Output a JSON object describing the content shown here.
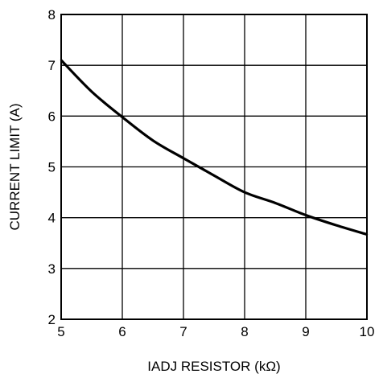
{
  "chart_data": {
    "type": "line",
    "title": "",
    "xlabel": "IADJ RESISTOR (kΩ)",
    "ylabel": "CURRENT LIMIT (A)",
    "xlim": [
      5,
      10
    ],
    "ylim": [
      2,
      8
    ],
    "xticks": [
      5,
      6,
      7,
      8,
      9,
      10
    ],
    "yticks": [
      2,
      3,
      4,
      5,
      6,
      7,
      8
    ],
    "grid": true,
    "series": [
      {
        "x": [
          5.0,
          5.5,
          6.0,
          6.5,
          7.0,
          7.5,
          8.0,
          8.5,
          9.0,
          9.5,
          10.0
        ],
        "y": [
          7.1,
          6.48,
          5.98,
          5.52,
          5.17,
          4.83,
          4.5,
          4.29,
          4.05,
          3.85,
          3.67
        ]
      }
    ]
  },
  "colors": {
    "line": "#000000",
    "grid": "#000000",
    "background": "#ffffff"
  }
}
